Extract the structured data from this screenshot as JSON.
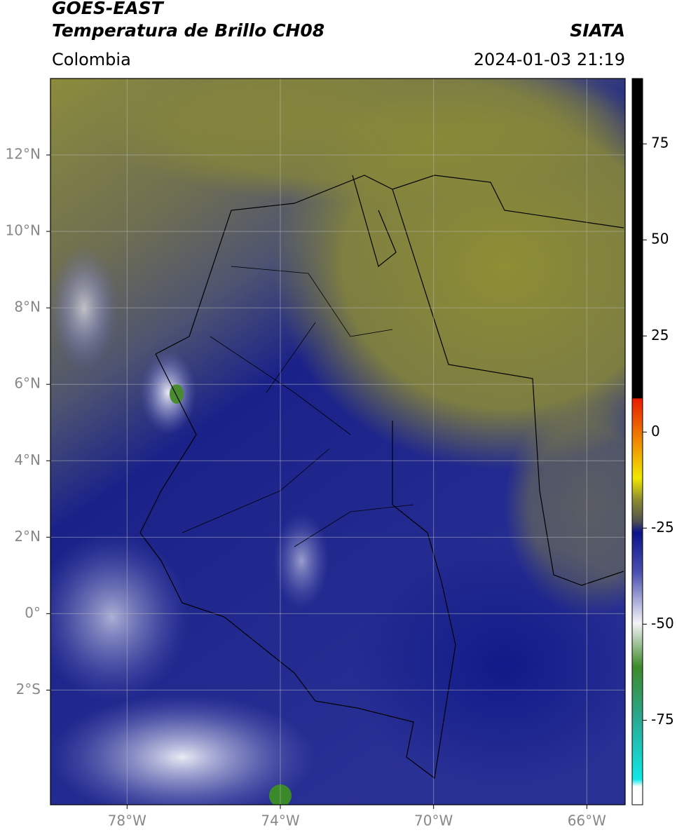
{
  "header": {
    "title": "GOES-EAST",
    "subtitle": "Temperatura de Brillo CH08",
    "region": "Colombia",
    "source": "SIATA",
    "datetime": "2024-01-03 21:19"
  },
  "map": {
    "xlim": [
      -80,
      -65
    ],
    "ylim": [
      -5,
      14
    ],
    "xticks": [
      {
        "value": -78,
        "label": "78°W"
      },
      {
        "value": -74,
        "label": "74°W"
      },
      {
        "value": -70,
        "label": "70°W"
      },
      {
        "value": -66,
        "label": "66°W"
      }
    ],
    "yticks": [
      {
        "value": 12,
        "label": "12°N"
      },
      {
        "value": 10,
        "label": "10°N"
      },
      {
        "value": 8,
        "label": "8°N"
      },
      {
        "value": 6,
        "label": "6°N"
      },
      {
        "value": 4,
        "label": "4°N"
      },
      {
        "value": 2,
        "label": "2°N"
      },
      {
        "value": 0,
        "label": "0°"
      },
      {
        "value": -2,
        "label": "2°S"
      }
    ],
    "grid": true
  },
  "colorbar": {
    "lim": [
      -97,
      92
    ],
    "ticks": [
      75,
      50,
      25,
      0,
      -25,
      -50,
      -75
    ]
  }
}
